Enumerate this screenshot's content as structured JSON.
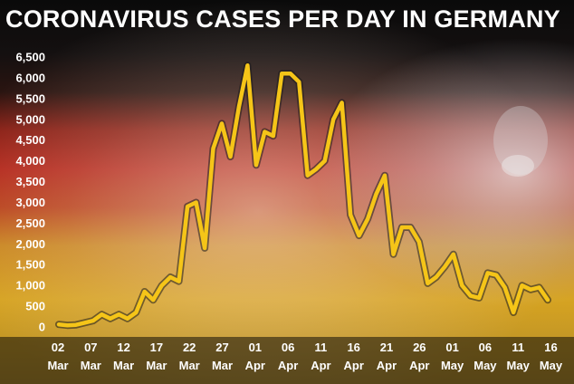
{
  "chart_data": {
    "type": "line",
    "title": "CORONAVIRUS CASES PER DAY IN GERMANY",
    "xlabel": "",
    "ylabel": "",
    "ylim": [
      0,
      6500
    ],
    "y_ticks": [
      0,
      500,
      1000,
      1500,
      2000,
      2500,
      3000,
      3500,
      4000,
      4500,
      5000,
      5500,
      6000,
      6500
    ],
    "y_tick_labels": [
      "0",
      "500",
      "1,000",
      "1,500",
      "2,000",
      "2,500",
      "3,000",
      "3,500",
      "4,000",
      "4,500",
      "5,000",
      "5,500",
      "6,000",
      "6,500"
    ],
    "x_tick_labels": [
      {
        "day": "02",
        "month": "Mar"
      },
      {
        "day": "07",
        "month": "Mar"
      },
      {
        "day": "12",
        "month": "Mar"
      },
      {
        "day": "17",
        "month": "Mar"
      },
      {
        "day": "22",
        "month": "Mar"
      },
      {
        "day": "27",
        "month": "Mar"
      },
      {
        "day": "01",
        "month": "Apr"
      },
      {
        "day": "06",
        "month": "Apr"
      },
      {
        "day": "11",
        "month": "Apr"
      },
      {
        "day": "16",
        "month": "Apr"
      },
      {
        "day": "21",
        "month": "Apr"
      },
      {
        "day": "26",
        "month": "Apr"
      },
      {
        "day": "01",
        "month": "May"
      },
      {
        "day": "06",
        "month": "May"
      },
      {
        "day": "11",
        "month": "May"
      },
      {
        "day": "16",
        "month": "May"
      }
    ],
    "grid": false,
    "line_color": "#f5c518",
    "series": [
      {
        "values": [
          60,
          40,
          50,
          100,
          150,
          300,
          200,
          300,
          200,
          350,
          850,
          650,
          1000,
          1200,
          1100,
          2900,
          3000,
          1900,
          4300,
          4900,
          4100,
          5300,
          6300,
          3900,
          4700,
          4600,
          6100,
          6100,
          5900,
          3650,
          3800,
          4000,
          5000,
          5400,
          2700,
          2200,
          2600,
          3200,
          3650,
          1750,
          2400,
          2400,
          2050,
          1050,
          1200,
          1450,
          1750,
          1000,
          750,
          700,
          1300,
          1250,
          950,
          350,
          1000,
          900,
          950,
          650
        ]
      }
    ]
  }
}
